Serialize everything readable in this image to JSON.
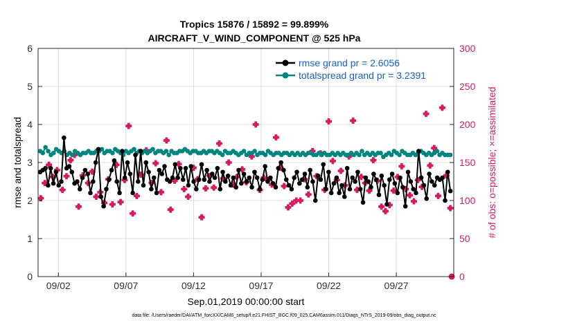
{
  "chart_data": {
    "type": "line",
    "title": "Tropics 15876 / 15892 = 99.899%",
    "subtitle": "AIRCRAFT_V_WIND_COMPONENT @ 525 hPa",
    "xlabel": "Sep.01,2019 00:00:00 start",
    "ylabel": "rmse and totalspread",
    "y2label": "# of obs: o=possible; ×=assimilated",
    "xlim": [
      0.5,
      31.25
    ],
    "ylim": [
      0,
      6
    ],
    "y2lim": [
      0,
      300
    ],
    "x_ticks": [
      2,
      7,
      12,
      17,
      22,
      27
    ],
    "x_tick_labels": [
      "09/02",
      "09/07",
      "09/12",
      "09/17",
      "09/22",
      "09/27"
    ],
    "y_ticks": [
      0,
      1,
      2,
      3,
      4,
      5,
      6
    ],
    "y2_ticks": [
      0,
      50,
      100,
      150,
      200,
      250,
      300
    ],
    "legend_position": "top-right",
    "colors": {
      "rmse": "#000000",
      "totalspread": "#00857f",
      "obs": "#d81b60",
      "legend_text": "#1565c0",
      "grid": "#d6d6d6"
    },
    "series": [
      {
        "name": "rmse grand pr = 2.6056",
        "axis": "left",
        "color": "#000000",
        "marker": "circle",
        "values": [
          2.75,
          2.8,
          2.85,
          2.4,
          2.85,
          2.45,
          2.75,
          2.4,
          2.5,
          3.65,
          2.85,
          2.9,
          2.75,
          2.45,
          2.5,
          2.3,
          2.6,
          2.8,
          2.7,
          2.2,
          2.5,
          3.0,
          3.35,
          2.1,
          1.85,
          2.3,
          2.55,
          2.8,
          3.05,
          2.5,
          2.2,
          3.3,
          2.6,
          3.0,
          2.7,
          2.2,
          3.2,
          2.5,
          3.3,
          2.4,
          3.0,
          2.75,
          2.3,
          2.6,
          2.2,
          2.8,
          2.7,
          2.9,
          2.55,
          2.5,
          2.6,
          2.95,
          2.6,
          2.85,
          2.55,
          2.85,
          2.4,
          2.9,
          2.5,
          2.3,
          2.55,
          2.95,
          2.55,
          2.8,
          2.5,
          2.7,
          2.6,
          2.85,
          2.3,
          2.75,
          2.5,
          2.65,
          2.4,
          2.6,
          2.35,
          2.8,
          2.45,
          2.7,
          2.5,
          2.6,
          2.35,
          2.75,
          2.6,
          2.3,
          2.55,
          2.9,
          2.5,
          2.6,
          2.45,
          2.35,
          2.85,
          3.0,
          2.8,
          2.55,
          2.4,
          2.3,
          2.6,
          2.75,
          2.45,
          2.55,
          2.7,
          2.35,
          2.8,
          2.5,
          2.0,
          2.65,
          2.55,
          2.95,
          2.3,
          2.75,
          2.2,
          2.45,
          2.6,
          2.2,
          2.4,
          2.1,
          2.85,
          2.3,
          2.6,
          2.5,
          2.75,
          2.3,
          1.95,
          2.6,
          2.5,
          2.35,
          2.7,
          2.55,
          2.15,
          2.65,
          2.4,
          1.9,
          2.55,
          2.7,
          2.45,
          2.2,
          2.6,
          2.35,
          1.85,
          2.75,
          2.5,
          2.3,
          2.2,
          3.3,
          2.6,
          2.4,
          2.05,
          2.7,
          2.5,
          2.4,
          2.6,
          2.55,
          2.6,
          2.0,
          2.75,
          2.25
        ]
      },
      {
        "name": "totalspread grand pr = 3.2391",
        "axis": "left",
        "color": "#00857f",
        "marker": "circle",
        "values": [
          3.3,
          3.25,
          3.4,
          3.3,
          3.2,
          3.25,
          3.35,
          3.3,
          3.25,
          3.3,
          3.2,
          3.25,
          3.2,
          3.3,
          3.25,
          3.2,
          3.25,
          3.25,
          3.3,
          3.25,
          3.25,
          3.3,
          3.3,
          3.35,
          3.25,
          3.3,
          3.3,
          3.25,
          3.35,
          3.3,
          3.25,
          3.2,
          3.3,
          3.25,
          3.3,
          3.35,
          3.25,
          3.3,
          3.25,
          3.3,
          3.25,
          3.3,
          3.35,
          3.25,
          3.3,
          3.3,
          3.25,
          3.3,
          3.2,
          3.3,
          3.25,
          3.25,
          3.3,
          3.3,
          3.35,
          3.3,
          3.25,
          3.3,
          3.3,
          3.25,
          3.25,
          3.3,
          3.25,
          3.3,
          3.3,
          3.25,
          3.3,
          3.25,
          3.2,
          3.3,
          3.25,
          3.25,
          3.3,
          3.25,
          3.2,
          3.25,
          3.3,
          3.2,
          3.25,
          3.25,
          3.3,
          3.2,
          3.25,
          3.25,
          3.2,
          3.3,
          3.25,
          3.2,
          3.25,
          3.25,
          3.2,
          3.25,
          3.25,
          3.2,
          3.25,
          3.2,
          3.25,
          3.2,
          3.25,
          3.2,
          3.25,
          3.25,
          3.2,
          3.2,
          3.25,
          3.2,
          3.25,
          3.2,
          3.2,
          3.25,
          3.2,
          3.25,
          3.2,
          3.25,
          3.2,
          3.2,
          3.25,
          3.2,
          3.25,
          3.2,
          3.3,
          3.2,
          3.25,
          3.2,
          3.25,
          3.2,
          3.25,
          3.25,
          3.15,
          3.2,
          3.25,
          3.2,
          3.3,
          3.25,
          3.2,
          3.3,
          3.25,
          3.2,
          3.2,
          3.25,
          3.2,
          3.25,
          3.3,
          3.25,
          3.2,
          3.25,
          3.2,
          3.25,
          3.3,
          3.2,
          3.25,
          3.2,
          3.2,
          3.2
        ]
      },
      {
        "name": "obs possible (o)",
        "axis": "right",
        "color": "#d81b60",
        "marker": "circle",
        "x": [
          31.1
        ],
        "values": [
          0
        ]
      },
      {
        "name": "obs assimilated (×)",
        "axis": "right",
        "color": "#d81b60",
        "marker": "cross",
        "points": [
          [
            0.7,
            103
          ],
          [
            1.0,
            123
          ],
          [
            1.3,
            147
          ],
          [
            1.6,
            131
          ],
          [
            1.9,
            140
          ],
          [
            2.3,
            114
          ],
          [
            2.6,
            132
          ],
          [
            2.9,
            153
          ],
          [
            3.2,
            160
          ],
          [
            3.5,
            92
          ],
          [
            3.8,
            133
          ],
          [
            4.2,
            123
          ],
          [
            4.5,
            138
          ],
          [
            4.8,
            105
          ],
          [
            5.1,
            111
          ],
          [
            5.4,
            97
          ],
          [
            5.7,
            128
          ],
          [
            6.0,
            95
          ],
          [
            6.3,
            147
          ],
          [
            6.6,
            98
          ],
          [
            6.9,
            127
          ],
          [
            7.2,
            198
          ],
          [
            7.5,
            83
          ],
          [
            7.8,
            106
          ],
          [
            8.1,
            134
          ],
          [
            8.5,
            166
          ],
          [
            8.9,
            123
          ],
          [
            9.2,
            149
          ],
          [
            9.6,
            111
          ],
          [
            10.0,
            179
          ],
          [
            10.3,
            88
          ],
          [
            10.6,
            126
          ],
          [
            10.9,
            148
          ],
          [
            11.3,
            115
          ],
          [
            11.6,
            105
          ],
          [
            12.0,
            143
          ],
          [
            12.3,
            128
          ],
          [
            12.6,
            78
          ],
          [
            12.9,
            116
          ],
          [
            13.2,
            132
          ],
          [
            13.5,
            117
          ],
          [
            13.9,
            175
          ],
          [
            14.2,
            129
          ],
          [
            14.6,
            150
          ],
          [
            14.9,
            121
          ],
          [
            15.2,
            131
          ],
          [
            15.6,
            141
          ],
          [
            15.9,
            124
          ],
          [
            16.3,
            158
          ],
          [
            16.6,
            200
          ],
          [
            16.9,
            114
          ],
          [
            17.2,
            130
          ],
          [
            17.5,
            127
          ],
          [
            17.8,
            121
          ],
          [
            18.1,
            183
          ],
          [
            18.4,
            143
          ],
          [
            18.7,
            119
          ],
          [
            19.0,
            91
          ],
          [
            19.3,
            96
          ],
          [
            19.6,
            100
          ],
          [
            19.9,
            100
          ],
          [
            20.2,
            128
          ],
          [
            20.5,
            108
          ],
          [
            20.8,
            165
          ],
          [
            21.1,
            132
          ],
          [
            21.4,
            162
          ],
          [
            21.7,
            114
          ],
          [
            22.0,
            204
          ],
          [
            22.3,
            152
          ],
          [
            22.6,
            127
          ],
          [
            22.9,
            139
          ],
          [
            23.2,
            120
          ],
          [
            23.5,
            158
          ],
          [
            23.8,
            205
          ],
          [
            24.1,
            114
          ],
          [
            24.4,
            131
          ],
          [
            24.7,
            123
          ],
          [
            25.0,
            113
          ],
          [
            25.3,
            153
          ],
          [
            25.6,
            126
          ],
          [
            25.9,
            92
          ],
          [
            26.2,
            86
          ],
          [
            26.5,
            94
          ],
          [
            26.8,
            113
          ],
          [
            27.1,
            131
          ],
          [
            27.4,
            145
          ],
          [
            27.7,
            115
          ],
          [
            28.0,
            107
          ],
          [
            28.3,
            99
          ],
          [
            28.6,
            127
          ],
          [
            28.9,
            118
          ],
          [
            29.2,
            214
          ],
          [
            29.5,
            146
          ],
          [
            29.8,
            169
          ],
          [
            30.1,
            106
          ],
          [
            30.4,
            222
          ],
          [
            30.7,
            133
          ],
          [
            31.0,
            90
          ]
        ]
      }
    ],
    "footnote": "data file: /Users/raeder/DAI/ATM_forcXX/CAM6_setup/f.e21.FHIST_BGC.f09_025.CAM6assim.011/Diags_NTrS_2019-09/obs_diag_output.nc"
  }
}
